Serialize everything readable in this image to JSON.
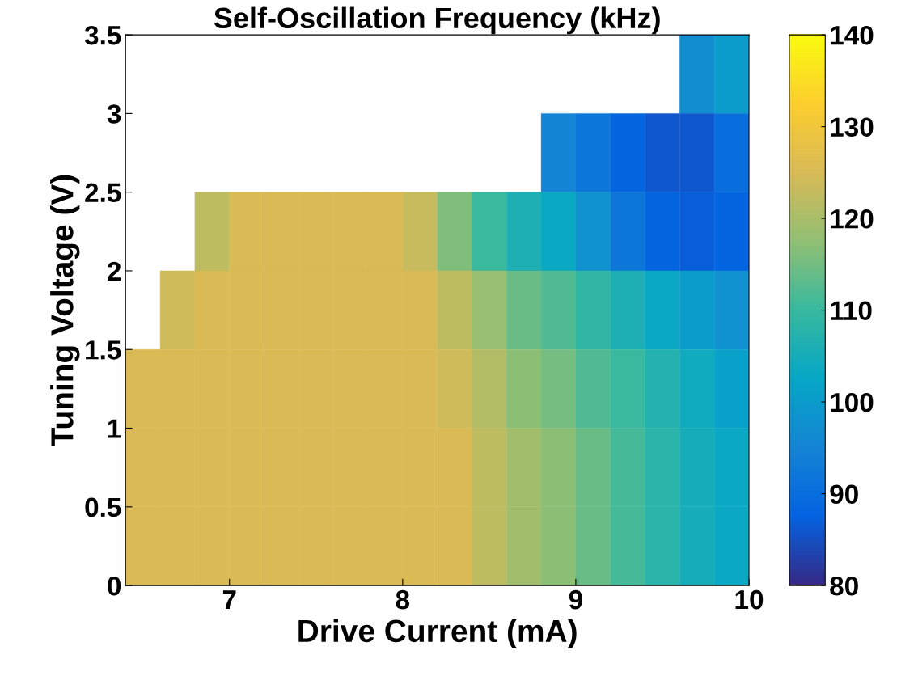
{
  "chart_data": {
    "type": "heatmap",
    "title": "Self-Oscillation Frequency (kHz)",
    "xlabel": "Drive Current (mA)",
    "ylabel": "Tuning Voltage (V)",
    "x": [
      6.5,
      6.7,
      6.9,
      7.1,
      7.3,
      7.5,
      7.7,
      7.9,
      8.1,
      8.3,
      8.5,
      8.7,
      8.9,
      9.1,
      9.3,
      9.5,
      9.7,
      9.9
    ],
    "y": [
      3.25,
      2.75,
      2.25,
      1.75,
      1.25,
      0.75,
      0.25
    ],
    "cells": [
      [
        null,
        null,
        null,
        null,
        null,
        null,
        null,
        null,
        null,
        null,
        null,
        null,
        null,
        null,
        null,
        null,
        97,
        100
      ],
      [
        null,
        null,
        null,
        null,
        null,
        null,
        null,
        null,
        null,
        null,
        null,
        null,
        95,
        92,
        88,
        86,
        86,
        90
      ],
      [
        null,
        null,
        122,
        125,
        125,
        125,
        125,
        125,
        123,
        116,
        110,
        106,
        103,
        98,
        92,
        88,
        87,
        88
      ],
      [
        null,
        124,
        125,
        125,
        125,
        125,
        125,
        125,
        125,
        122,
        118,
        114,
        112,
        109,
        106,
        103,
        100,
        98
      ],
      [
        125,
        125,
        125,
        125,
        125,
        125,
        125,
        125,
        125,
        124,
        121,
        117,
        115,
        112,
        110,
        107,
        104,
        101
      ],
      [
        125,
        125,
        125,
        125,
        125,
        125,
        125,
        125,
        125,
        125,
        122,
        119,
        117,
        114,
        111,
        108,
        105,
        103
      ],
      [
        125,
        125,
        125,
        125,
        125,
        125,
        125,
        125,
        125,
        125,
        122,
        119,
        117,
        114,
        111,
        108,
        105,
        103
      ]
    ],
    "xlim": [
      6.4,
      10
    ],
    "xticks": [
      7,
      8,
      9,
      10
    ],
    "ylim": [
      0,
      3.5
    ],
    "yticks": [
      0,
      0.5,
      1,
      1.5,
      2,
      2.5,
      3,
      3.5
    ],
    "clim": [
      80,
      140
    ],
    "cticks": [
      80,
      90,
      100,
      110,
      120,
      130,
      140
    ]
  }
}
